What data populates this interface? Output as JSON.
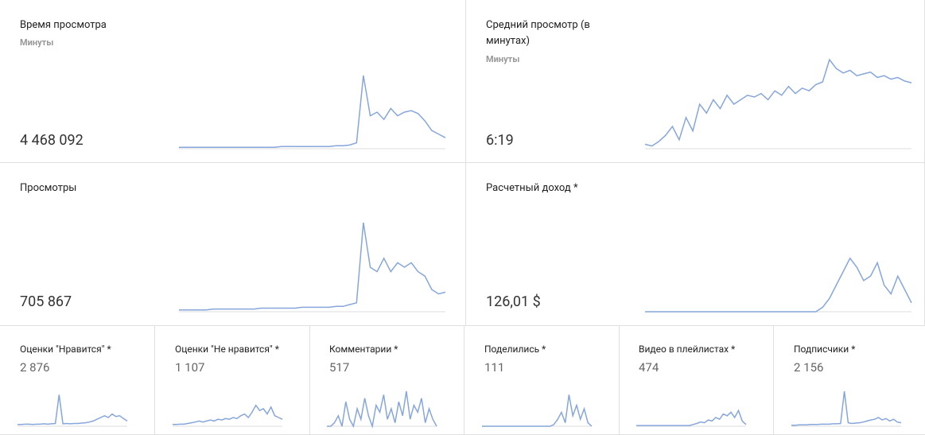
{
  "cards": [
    {
      "title": "Время просмотра",
      "subtitle": "Минуты",
      "value": "4 468 092",
      "sparkline": {
        "ylim": [
          0,
          100
        ],
        "values": [
          2,
          2,
          2,
          2,
          2,
          2,
          2,
          2,
          2,
          2,
          2,
          2,
          2,
          2,
          2,
          3,
          3,
          3,
          3,
          3,
          3,
          3,
          3,
          4,
          4,
          5,
          8,
          100,
          45,
          50,
          40,
          55,
          45,
          50,
          52,
          48,
          38,
          25,
          20,
          15
        ]
      }
    },
    {
      "title": "Средний просмотр (в минутах)",
      "subtitle": "Минуты",
      "value": "6:19",
      "sparkline": {
        "ylim": [
          0,
          100
        ],
        "values": [
          5,
          3,
          8,
          15,
          25,
          10,
          35,
          20,
          50,
          40,
          55,
          45,
          60,
          50,
          55,
          60,
          58,
          62,
          55,
          65,
          60,
          70,
          62,
          68,
          65,
          72,
          75,
          100,
          90,
          85,
          88,
          82,
          84,
          86,
          80,
          82,
          78,
          80,
          76,
          74
        ]
      }
    },
    {
      "title": "Просмотры",
      "value": "705 867",
      "sparkline": {
        "ylim": [
          0,
          100
        ],
        "values": [
          2,
          2,
          2,
          2,
          2,
          3,
          3,
          3,
          3,
          3,
          3,
          3,
          4,
          4,
          4,
          4,
          4,
          4,
          5,
          5,
          5,
          5,
          5,
          6,
          6,
          8,
          10,
          100,
          50,
          45,
          60,
          45,
          55,
          50,
          55,
          45,
          40,
          25,
          20,
          22
        ]
      }
    },
    {
      "title": "Расчетный доход *",
      "value": "126,01 $",
      "sparkline": {
        "ylim": [
          0,
          100
        ],
        "values": [
          0,
          0,
          0,
          0,
          0,
          0,
          0,
          0,
          0,
          0,
          0,
          0,
          0,
          0,
          0,
          0,
          0,
          0,
          0,
          0,
          0,
          0,
          0,
          0,
          0,
          0,
          5,
          15,
          30,
          45,
          60,
          50,
          35,
          40,
          55,
          30,
          20,
          40,
          25,
          10
        ]
      }
    }
  ],
  "small_cards": [
    {
      "title": "Оценки \"Нравится\" *",
      "value": "2 876",
      "sparkline": {
        "ylim": [
          0,
          100
        ],
        "values": [
          5,
          5,
          6,
          6,
          5,
          6,
          6,
          7,
          6,
          7,
          8,
          90,
          7,
          8,
          7,
          8,
          8,
          9,
          10,
          12,
          15,
          20,
          25,
          30,
          25,
          35,
          28,
          30,
          22,
          15
        ]
      }
    },
    {
      "title": "Оценки \"Не нравится\" *",
      "value": "1 107",
      "sparkline": {
        "ylim": [
          0,
          100
        ],
        "values": [
          5,
          5,
          6,
          6,
          8,
          10,
          12,
          15,
          12,
          15,
          18,
          15,
          20,
          18,
          22,
          20,
          25,
          22,
          30,
          35,
          25,
          40,
          60,
          45,
          50,
          35,
          55,
          30,
          25,
          20
        ]
      }
    },
    {
      "title": "Комментарии *",
      "value": "517",
      "sparkline": {
        "ylim": [
          0,
          100
        ],
        "values": [
          0,
          0,
          10,
          30,
          0,
          70,
          20,
          0,
          50,
          20,
          80,
          30,
          0,
          60,
          40,
          90,
          20,
          50,
          10,
          70,
          30,
          100,
          20,
          60,
          40,
          80,
          10,
          50,
          20,
          0
        ]
      }
    },
    {
      "title": "Поделились *",
      "value": "111",
      "sparkline": {
        "ylim": [
          0,
          100
        ],
        "values": [
          0,
          0,
          0,
          0,
          0,
          0,
          0,
          0,
          0,
          0,
          0,
          0,
          0,
          0,
          0,
          0,
          0,
          0,
          0,
          5,
          20,
          40,
          10,
          90,
          30,
          60,
          20,
          50,
          10,
          0
        ]
      }
    },
    {
      "title": "Видео в плейлистах *",
      "value": "474",
      "sparkline": {
        "ylim": [
          0,
          100
        ],
        "values": [
          2,
          2,
          2,
          2,
          2,
          2,
          2,
          2,
          2,
          2,
          2,
          2,
          2,
          2,
          2,
          5,
          8,
          12,
          10,
          18,
          15,
          25,
          20,
          35,
          30,
          40,
          25,
          45,
          15,
          5
        ]
      }
    },
    {
      "title": "Подписчики *",
      "value": "2 156",
      "sparkline": {
        "ylim": [
          0,
          100
        ],
        "values": [
          3,
          3,
          4,
          4,
          4,
          5,
          5,
          5,
          6,
          6,
          6,
          7,
          7,
          8,
          100,
          10,
          8,
          9,
          10,
          12,
          15,
          18,
          20,
          25,
          18,
          22,
          15,
          20,
          12,
          10
        ]
      }
    }
  ]
}
